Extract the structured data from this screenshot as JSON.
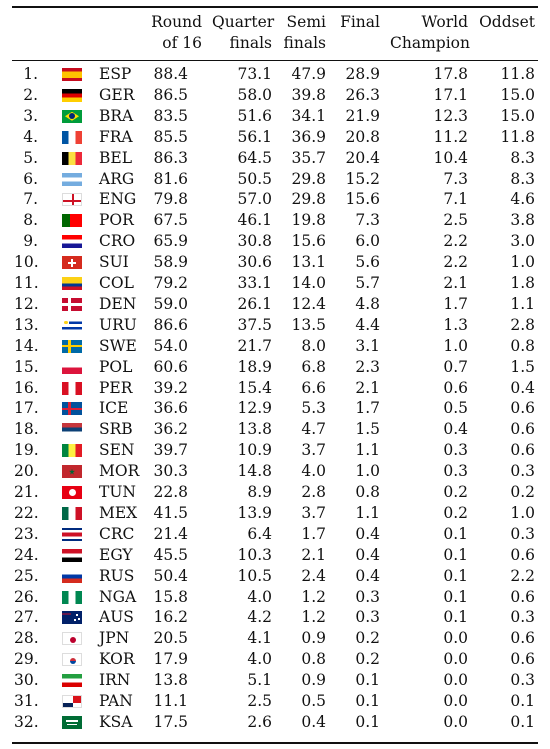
{
  "headers": {
    "r16": [
      "Round",
      "of 16"
    ],
    "qf": [
      "Quarter",
      "finals"
    ],
    "sf": [
      "Semi",
      "finals"
    ],
    "final": "Final",
    "wc": [
      "World",
      "Champion"
    ],
    "odds": "Oddset"
  },
  "rows": [
    {
      "rank": "1.",
      "code": "ESP",
      "r16": "88.4",
      "qf": "73.1",
      "sf": "47.9",
      "fin": "28.9",
      "wc": "17.8",
      "odds": "11.8",
      "flag": [
        "#c60b1e",
        "#ffc400",
        "#c60b1e"
      ],
      "dir": "h",
      "w": [
        1,
        2,
        1
      ]
    },
    {
      "rank": "2.",
      "code": "GER",
      "r16": "86.5",
      "qf": "58.0",
      "sf": "39.8",
      "fin": "26.3",
      "wc": "17.1",
      "odds": "15.0",
      "flag": [
        "#000000",
        "#dd0000",
        "#ffce00"
      ],
      "dir": "h"
    },
    {
      "rank": "3.",
      "code": "BRA",
      "r16": "83.5",
      "qf": "51.6",
      "sf": "34.1",
      "fin": "21.9",
      "wc": "12.3",
      "odds": "15.0",
      "flag": [
        "#009c3b"
      ],
      "dir": "h",
      "mark": "diamond"
    },
    {
      "rank": "4.",
      "code": "FRA",
      "r16": "85.5",
      "qf": "56.1",
      "sf": "36.9",
      "fin": "20.8",
      "wc": "11.2",
      "odds": "11.8",
      "flag": [
        "#0055a4",
        "#ffffff",
        "#ef4135"
      ],
      "dir": "v"
    },
    {
      "rank": "5.",
      "code": "BEL",
      "r16": "86.3",
      "qf": "64.5",
      "sf": "35.7",
      "fin": "20.4",
      "wc": "10.4",
      "odds": "8.3",
      "flag": [
        "#000000",
        "#fae042",
        "#ed2939"
      ],
      "dir": "v"
    },
    {
      "rank": "6.",
      "code": "ARG",
      "r16": "81.6",
      "qf": "50.5",
      "sf": "29.8",
      "fin": "15.2",
      "wc": "7.3",
      "odds": "8.3",
      "flag": [
        "#74acdf",
        "#ffffff",
        "#74acdf"
      ],
      "dir": "h"
    },
    {
      "rank": "7.",
      "code": "ENG",
      "r16": "79.8",
      "qf": "57.0",
      "sf": "29.8",
      "fin": "15.6",
      "wc": "7.1",
      "odds": "4.6",
      "flag": [
        "#ffffff"
      ],
      "dir": "h",
      "mark": "cross"
    },
    {
      "rank": "8.",
      "code": "POR",
      "r16": "67.5",
      "qf": "46.1",
      "sf": "19.8",
      "fin": "7.3",
      "wc": "2.5",
      "odds": "3.8",
      "flag": [
        "#006600",
        "#ff0000"
      ],
      "dir": "v",
      "w": [
        2,
        3
      ]
    },
    {
      "rank": "9.",
      "code": "CRO",
      "r16": "65.9",
      "qf": "30.8",
      "sf": "15.6",
      "fin": "6.0",
      "wc": "2.2",
      "odds": "3.0",
      "flag": [
        "#ff0000",
        "#ffffff",
        "#171796"
      ],
      "dir": "h"
    },
    {
      "rank": "10.",
      "code": "SUI",
      "r16": "58.9",
      "qf": "30.6",
      "sf": "13.1",
      "fin": "5.6",
      "wc": "2.2",
      "odds": "1.0",
      "flag": [
        "#d52b1e"
      ],
      "dir": "h",
      "mark": "swiss"
    },
    {
      "rank": "11.",
      "code": "COL",
      "r16": "79.2",
      "qf": "33.1",
      "sf": "14.0",
      "fin": "5.7",
      "wc": "2.1",
      "odds": "1.8",
      "flag": [
        "#fcd116",
        "#003893",
        "#ce1126"
      ],
      "dir": "h",
      "w": [
        2,
        1,
        1
      ]
    },
    {
      "rank": "12.",
      "code": "DEN",
      "r16": "59.0",
      "qf": "26.1",
      "sf": "12.4",
      "fin": "4.8",
      "wc": "1.7",
      "odds": "1.1",
      "flag": [
        "#c60c30"
      ],
      "dir": "h",
      "mark": "nordic",
      "cross": "#ffffff"
    },
    {
      "rank": "13.",
      "code": "URU",
      "r16": "86.6",
      "qf": "37.5",
      "sf": "13.5",
      "fin": "4.4",
      "wc": "1.3",
      "odds": "2.8",
      "flag": [
        "#ffffff",
        "#0038a8",
        "#ffffff",
        "#0038a8",
        "#ffffff"
      ],
      "dir": "h",
      "mark": "sun"
    },
    {
      "rank": "14.",
      "code": "SWE",
      "r16": "54.0",
      "qf": "21.7",
      "sf": "8.0",
      "fin": "3.1",
      "wc": "1.0",
      "odds": "0.8",
      "flag": [
        "#006aa7"
      ],
      "dir": "h",
      "mark": "nordic",
      "cross": "#fecc00"
    },
    {
      "rank": "15.",
      "code": "POL",
      "r16": "60.6",
      "qf": "18.9",
      "sf": "6.8",
      "fin": "2.3",
      "wc": "0.7",
      "odds": "1.5",
      "flag": [
        "#ffffff",
        "#dc143c"
      ],
      "dir": "h"
    },
    {
      "rank": "16.",
      "code": "PER",
      "r16": "39.2",
      "qf": "15.4",
      "sf": "6.6",
      "fin": "2.1",
      "wc": "0.6",
      "odds": "0.4",
      "flag": [
        "#d91023",
        "#ffffff",
        "#d91023"
      ],
      "dir": "v"
    },
    {
      "rank": "17.",
      "code": "ICE",
      "r16": "36.6",
      "qf": "12.9",
      "sf": "5.3",
      "fin": "1.7",
      "wc": "0.5",
      "odds": "0.6",
      "flag": [
        "#02529c"
      ],
      "dir": "h",
      "mark": "nordic",
      "cross": "#dc1e35"
    },
    {
      "rank": "18.",
      "code": "SRB",
      "r16": "36.2",
      "qf": "13.8",
      "sf": "4.7",
      "fin": "1.5",
      "wc": "0.4",
      "odds": "0.6",
      "flag": [
        "#c6363c",
        "#0c4076",
        "#ffffff"
      ],
      "dir": "h"
    },
    {
      "rank": "19.",
      "code": "SEN",
      "r16": "39.7",
      "qf": "10.9",
      "sf": "3.7",
      "fin": "1.1",
      "wc": "0.3",
      "odds": "0.6",
      "flag": [
        "#00853f",
        "#fdef42",
        "#e31b23"
      ],
      "dir": "v"
    },
    {
      "rank": "20.",
      "code": "MOR",
      "r16": "30.3",
      "qf": "14.8",
      "sf": "4.0",
      "fin": "1.0",
      "wc": "0.3",
      "odds": "0.3",
      "flag": [
        "#c1272d"
      ],
      "dir": "h",
      "mark": "star"
    },
    {
      "rank": "21.",
      "code": "TUN",
      "r16": "22.8",
      "qf": "8.9",
      "sf": "2.8",
      "fin": "0.8",
      "wc": "0.2",
      "odds": "0.2",
      "flag": [
        "#e70013"
      ],
      "dir": "h",
      "mark": "disc"
    },
    {
      "rank": "22.",
      "code": "MEX",
      "r16": "41.5",
      "qf": "13.9",
      "sf": "3.7",
      "fin": "1.1",
      "wc": "0.2",
      "odds": "1.0",
      "flag": [
        "#006847",
        "#ffffff",
        "#ce1126"
      ],
      "dir": "v"
    },
    {
      "rank": "23.",
      "code": "CRC",
      "r16": "21.4",
      "qf": "6.4",
      "sf": "1.7",
      "fin": "0.4",
      "wc": "0.1",
      "odds": "0.3",
      "flag": [
        "#002b7f",
        "#ffffff",
        "#ce1126",
        "#ffffff",
        "#002b7f"
      ],
      "dir": "h",
      "w": [
        1,
        1,
        2,
        1,
        1
      ]
    },
    {
      "rank": "24.",
      "code": "EGY",
      "r16": "45.5",
      "qf": "10.3",
      "sf": "2.1",
      "fin": "0.4",
      "wc": "0.1",
      "odds": "0.6",
      "flag": [
        "#ce1126",
        "#ffffff",
        "#000000"
      ],
      "dir": "h"
    },
    {
      "rank": "25.",
      "code": "RUS",
      "r16": "50.4",
      "qf": "10.5",
      "sf": "2.4",
      "fin": "0.4",
      "wc": "0.1",
      "odds": "2.2",
      "flag": [
        "#ffffff",
        "#0039a6",
        "#d52b1e"
      ],
      "dir": "h"
    },
    {
      "rank": "26.",
      "code": "NGA",
      "r16": "15.8",
      "qf": "4.0",
      "sf": "1.2",
      "fin": "0.3",
      "wc": "0.1",
      "odds": "0.6",
      "flag": [
        "#008751",
        "#ffffff",
        "#008751"
      ],
      "dir": "v"
    },
    {
      "rank": "27.",
      "code": "AUS",
      "r16": "16.2",
      "qf": "4.2",
      "sf": "1.2",
      "fin": "0.3",
      "wc": "0.1",
      "odds": "0.3",
      "flag": [
        "#012169"
      ],
      "dir": "h",
      "mark": "aus"
    },
    {
      "rank": "28.",
      "code": "JPN",
      "r16": "20.5",
      "qf": "4.1",
      "sf": "0.9",
      "fin": "0.2",
      "wc": "0.0",
      "odds": "0.6",
      "flag": [
        "#ffffff"
      ],
      "dir": "h",
      "mark": "redsun"
    },
    {
      "rank": "29.",
      "code": "KOR",
      "r16": "17.9",
      "qf": "4.0",
      "sf": "0.8",
      "fin": "0.2",
      "wc": "0.0",
      "odds": "0.6",
      "flag": [
        "#ffffff"
      ],
      "dir": "h",
      "mark": "taeguk"
    },
    {
      "rank": "30.",
      "code": "IRN",
      "r16": "13.8",
      "qf": "5.1",
      "sf": "0.9",
      "fin": "0.1",
      "wc": "0.0",
      "odds": "0.3",
      "flag": [
        "#239f40",
        "#ffffff",
        "#da0000"
      ],
      "dir": "h"
    },
    {
      "rank": "31.",
      "code": "PAN",
      "r16": "11.1",
      "qf": "2.5",
      "sf": "0.5",
      "fin": "0.1",
      "wc": "0.0",
      "odds": "0.1",
      "flag": [
        "#ffffff"
      ],
      "dir": "h",
      "mark": "panama"
    },
    {
      "rank": "32.",
      "code": "KSA",
      "r16": "17.5",
      "qf": "2.6",
      "sf": "0.4",
      "fin": "0.1",
      "wc": "0.0",
      "odds": "0.1",
      "flag": [
        "#006c35"
      ],
      "dir": "h",
      "mark": "ksa"
    }
  ]
}
